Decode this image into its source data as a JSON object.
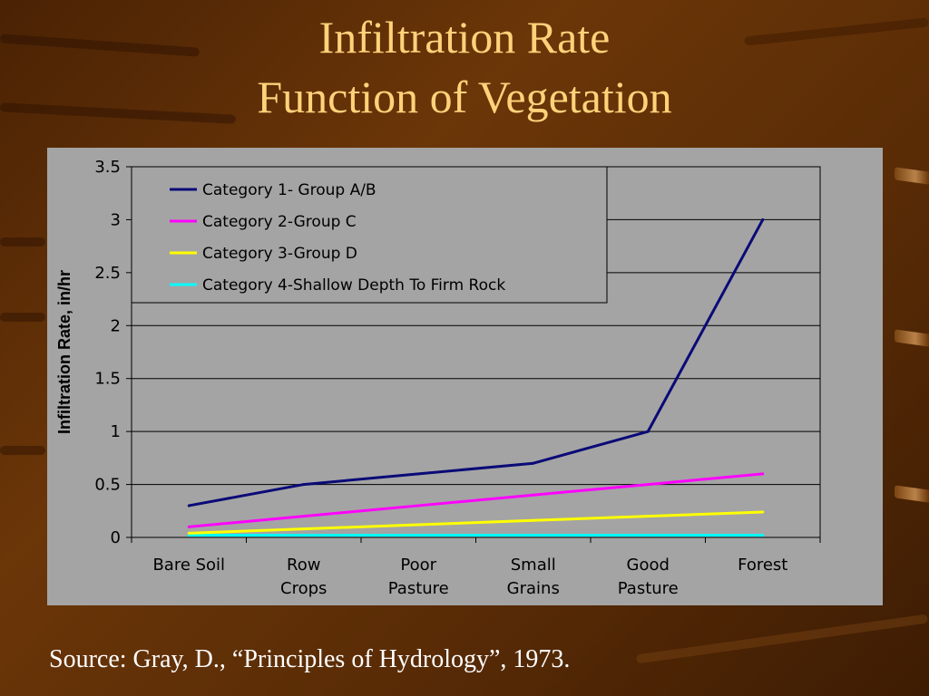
{
  "slide": {
    "title_line1": "Infiltration Rate",
    "title_line2": "Function of Vegetation",
    "source": "Source: Gray, D., “Principles of Hydrology”, 1973."
  },
  "colors": {
    "title": "#ffd27a",
    "chart_background": "#a4a4a4",
    "source_text": "#ffffff"
  },
  "chart_data": {
    "type": "line",
    "ylabel": "Infiltration Rate, in/hr",
    "xlabel": "",
    "ylim": [
      0,
      3.5
    ],
    "yticks": [
      "0",
      "0.5",
      "1",
      "1.5",
      "2",
      "2.5",
      "3",
      "3.5"
    ],
    "categories": [
      [
        "Bare Soil"
      ],
      [
        "Row",
        "Crops"
      ],
      [
        "Poor",
        "Pasture"
      ],
      [
        "Small",
        "Grains"
      ],
      [
        "Good",
        "Pasture"
      ],
      [
        "Forest"
      ]
    ],
    "grid": true,
    "legend_position": "top-left",
    "series": [
      {
        "name": "Category 1- Group A/B",
        "color": "#0a0a78",
        "values": [
          0.3,
          0.5,
          0.6,
          0.7,
          1.0,
          3.0
        ]
      },
      {
        "name": "Category 2-Group C",
        "color": "#ff00ff",
        "values": [
          0.1,
          0.2,
          0.3,
          0.4,
          0.5,
          0.6
        ]
      },
      {
        "name": "Category 3-Group D",
        "color": "#ffff00",
        "values": [
          0.04,
          0.08,
          0.12,
          0.16,
          0.2,
          0.24
        ]
      },
      {
        "name": "Category 4-Shallow Depth To Firm Rock",
        "color": "#00ffff",
        "values": [
          0.02,
          0.02,
          0.02,
          0.02,
          0.02,
          0.02
        ]
      }
    ]
  }
}
